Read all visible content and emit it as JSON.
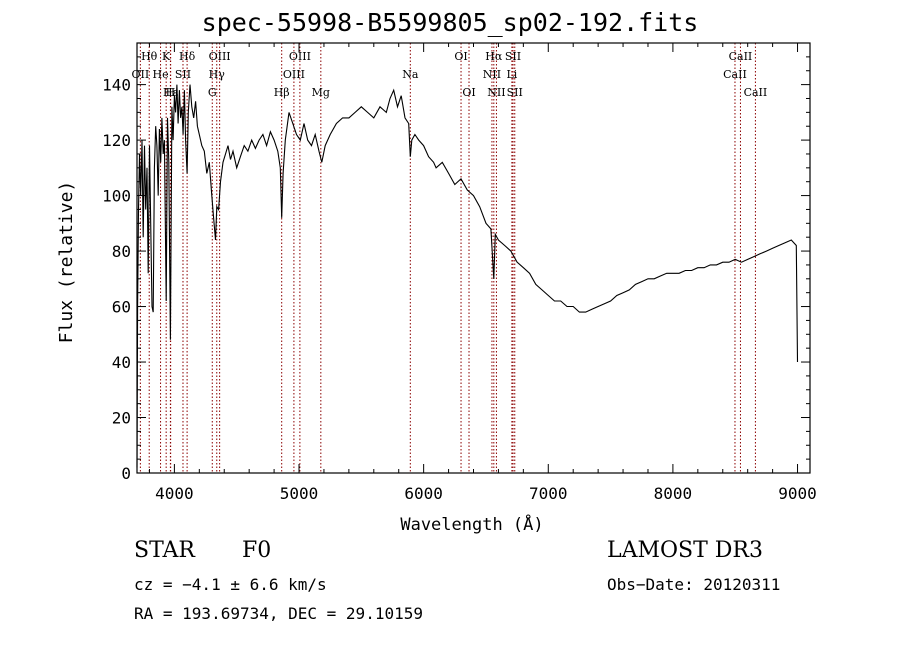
{
  "chart_data": {
    "type": "line",
    "title": "spec-55998-B5599805_sp02-192.fits",
    "xlabel": "Wavelength (Å)",
    "ylabel": "Flux (relative)",
    "xlim": [
      3700,
      9100
    ],
    "ylim": [
      0,
      155
    ],
    "xticks": [
      4000,
      5000,
      6000,
      7000,
      8000,
      9000
    ],
    "yticks": [
      0,
      20,
      40,
      60,
      80,
      100,
      120,
      140
    ],
    "series": [
      {
        "name": "spectrum",
        "points": [
          [
            3700,
            2
          ],
          [
            3705,
            60
          ],
          [
            3712,
            95
          ],
          [
            3720,
            115
          ],
          [
            3730,
            100
          ],
          [
            3740,
            120
          ],
          [
            3750,
            85
          ],
          [
            3760,
            118
          ],
          [
            3770,
            95
          ],
          [
            3780,
            110
          ],
          [
            3790,
            72
          ],
          [
            3800,
            118
          ],
          [
            3810,
            90
          ],
          [
            3820,
            60
          ],
          [
            3830,
            58
          ],
          [
            3840,
            110
          ],
          [
            3850,
            125
          ],
          [
            3860,
            118
          ],
          [
            3870,
            100
          ],
          [
            3880,
            124
          ],
          [
            3890,
            112
          ],
          [
            3900,
            128
          ],
          [
            3910,
            115
          ],
          [
            3920,
            120
          ],
          [
            3934,
            62
          ],
          [
            3945,
            128
          ],
          [
            3955,
            112
          ],
          [
            3968,
            48
          ],
          [
            3980,
            132
          ],
          [
            3990,
            120
          ],
          [
            4000,
            136
          ],
          [
            4010,
            130
          ],
          [
            4020,
            140
          ],
          [
            4030,
            126
          ],
          [
            4040,
            138
          ],
          [
            4050,
            128
          ],
          [
            4060,
            132
          ],
          [
            4070,
            122
          ],
          [
            4080,
            138
          ],
          [
            4090,
            120
          ],
          [
            4102,
            108
          ],
          [
            4112,
            130
          ],
          [
            4125,
            140
          ],
          [
            4140,
            132
          ],
          [
            4155,
            128
          ],
          [
            4170,
            134
          ],
          [
            4185,
            125
          ],
          [
            4200,
            122
          ],
          [
            4220,
            118
          ],
          [
            4240,
            116
          ],
          [
            4260,
            108
          ],
          [
            4280,
            112
          ],
          [
            4300,
            100
          ],
          [
            4315,
            92
          ],
          [
            4330,
            84
          ],
          [
            4340,
            96
          ],
          [
            4355,
            95
          ],
          [
            4370,
            105
          ],
          [
            4390,
            112
          ],
          [
            4410,
            115
          ],
          [
            4430,
            118
          ],
          [
            4450,
            113
          ],
          [
            4470,
            116
          ],
          [
            4500,
            110
          ],
          [
            4530,
            114
          ],
          [
            4560,
            118
          ],
          [
            4590,
            116
          ],
          [
            4620,
            120
          ],
          [
            4650,
            117
          ],
          [
            4680,
            120
          ],
          [
            4710,
            122
          ],
          [
            4740,
            118
          ],
          [
            4770,
            123
          ],
          [
            4800,
            120
          ],
          [
            4830,
            116
          ],
          [
            4850,
            110
          ],
          [
            4861,
            92
          ],
          [
            4872,
            108
          ],
          [
            4890,
            120
          ],
          [
            4920,
            130
          ],
          [
            4950,
            126
          ],
          [
            4980,
            122
          ],
          [
            5010,
            120
          ],
          [
            5040,
            126
          ],
          [
            5070,
            120
          ],
          [
            5100,
            118
          ],
          [
            5130,
            122
          ],
          [
            5160,
            116
          ],
          [
            5183,
            112
          ],
          [
            5210,
            118
          ],
          [
            5250,
            122
          ],
          [
            5300,
            126
          ],
          [
            5350,
            128
          ],
          [
            5400,
            128
          ],
          [
            5450,
            130
          ],
          [
            5500,
            132
          ],
          [
            5550,
            130
          ],
          [
            5600,
            128
          ],
          [
            5650,
            132
          ],
          [
            5700,
            130
          ],
          [
            5730,
            135
          ],
          [
            5760,
            138
          ],
          [
            5790,
            132
          ],
          [
            5820,
            136
          ],
          [
            5850,
            128
          ],
          [
            5880,
            126
          ],
          [
            5893,
            114
          ],
          [
            5905,
            120
          ],
          [
            5930,
            122
          ],
          [
            5960,
            120
          ],
          [
            6000,
            118
          ],
          [
            6040,
            114
          ],
          [
            6080,
            112
          ],
          [
            6100,
            110
          ],
          [
            6150,
            112
          ],
          [
            6200,
            108
          ],
          [
            6250,
            104
          ],
          [
            6300,
            106
          ],
          [
            6350,
            102
          ],
          [
            6400,
            100
          ],
          [
            6450,
            96
          ],
          [
            6500,
            90
          ],
          [
            6540,
            88
          ],
          [
            6563,
            70
          ],
          [
            6575,
            86
          ],
          [
            6600,
            84
          ],
          [
            6650,
            82
          ],
          [
            6700,
            80
          ],
          [
            6750,
            76
          ],
          [
            6800,
            74
          ],
          [
            6850,
            72
          ],
          [
            6900,
            68
          ],
          [
            6950,
            66
          ],
          [
            7000,
            64
          ],
          [
            7050,
            62
          ],
          [
            7100,
            62
          ],
          [
            7150,
            60
          ],
          [
            7200,
            60
          ],
          [
            7250,
            58
          ],
          [
            7300,
            58
          ],
          [
            7350,
            59
          ],
          [
            7400,
            60
          ],
          [
            7450,
            61
          ],
          [
            7500,
            62
          ],
          [
            7550,
            64
          ],
          [
            7600,
            65
          ],
          [
            7650,
            66
          ],
          [
            7700,
            68
          ],
          [
            7750,
            69
          ],
          [
            7800,
            70
          ],
          [
            7850,
            70
          ],
          [
            7900,
            71
          ],
          [
            7950,
            72
          ],
          [
            8000,
            72
          ],
          [
            8050,
            72
          ],
          [
            8100,
            73
          ],
          [
            8150,
            73
          ],
          [
            8200,
            74
          ],
          [
            8250,
            74
          ],
          [
            8300,
            75
          ],
          [
            8350,
            75
          ],
          [
            8400,
            76
          ],
          [
            8450,
            76
          ],
          [
            8500,
            77
          ],
          [
            8550,
            76
          ],
          [
            8600,
            77
          ],
          [
            8650,
            78
          ],
          [
            8700,
            79
          ],
          [
            8750,
            80
          ],
          [
            8800,
            81
          ],
          [
            8850,
            82
          ],
          [
            8900,
            83
          ],
          [
            8950,
            84
          ],
          [
            8990,
            82
          ],
          [
            9000,
            40
          ]
        ]
      }
    ],
    "lines": [
      {
        "label": "Hθ",
        "x": 3798,
        "row": 0
      },
      {
        "label": "OII",
        "x": 3727,
        "row": 1
      },
      {
        "label": "Hε",
        "x": 3970,
        "row": 2
      },
      {
        "label": "K",
        "x": 3934,
        "row": 0
      },
      {
        "label": "He",
        "x": 3889,
        "row": 1
      },
      {
        "label": "SII",
        "x": 4069,
        "row": 1
      },
      {
        "label": "Hδ",
        "x": 4102,
        "row": 0
      },
      {
        "label": "H",
        "x": 3968,
        "row": 2
      },
      {
        "label": "OIII",
        "x": 4363,
        "row": 0
      },
      {
        "label": "Hγ",
        "x": 4340,
        "row": 1
      },
      {
        "label": "G",
        "x": 4304,
        "row": 2
      },
      {
        "label": "OIII",
        "x": 5007,
        "row": 0
      },
      {
        "label": "OIII",
        "x": 4959,
        "row": 1
      },
      {
        "label": "Hβ",
        "x": 4861,
        "row": 2
      },
      {
        "label": "Mg",
        "x": 5175,
        "row": 2
      },
      {
        "label": "Na",
        "x": 5893,
        "row": 1
      },
      {
        "label": "OI",
        "x": 6300,
        "row": 0
      },
      {
        "label": "OI",
        "x": 6364,
        "row": 2
      },
      {
        "label": "Hα",
        "x": 6563,
        "row": 0
      },
      {
        "label": "NII",
        "x": 6548,
        "row": 1
      },
      {
        "label": "NII",
        "x": 6584,
        "row": 2
      },
      {
        "label": "SII",
        "x": 6717,
        "row": 0
      },
      {
        "label": "Li",
        "x": 6708,
        "row": 1
      },
      {
        "label": "SII",
        "x": 6731,
        "row": 2
      },
      {
        "label": "CaII",
        "x": 8542,
        "row": 0
      },
      {
        "label": "CaII",
        "x": 8498,
        "row": 1
      },
      {
        "label": "CaII",
        "x": 8662,
        "row": 2
      }
    ]
  },
  "info": {
    "object_class": "STAR",
    "subclass": "F0",
    "cz": "cz = −4.1 ± 6.6 km/s",
    "coords": "RA = 193.69734, DEC =  29.10159",
    "survey": "LAMOST DR3",
    "obs_date": "Obs−Date: 20120311"
  },
  "colors": {
    "line_marker": "#8b0000",
    "spectrum": "#000000",
    "axes": "#000000"
  }
}
